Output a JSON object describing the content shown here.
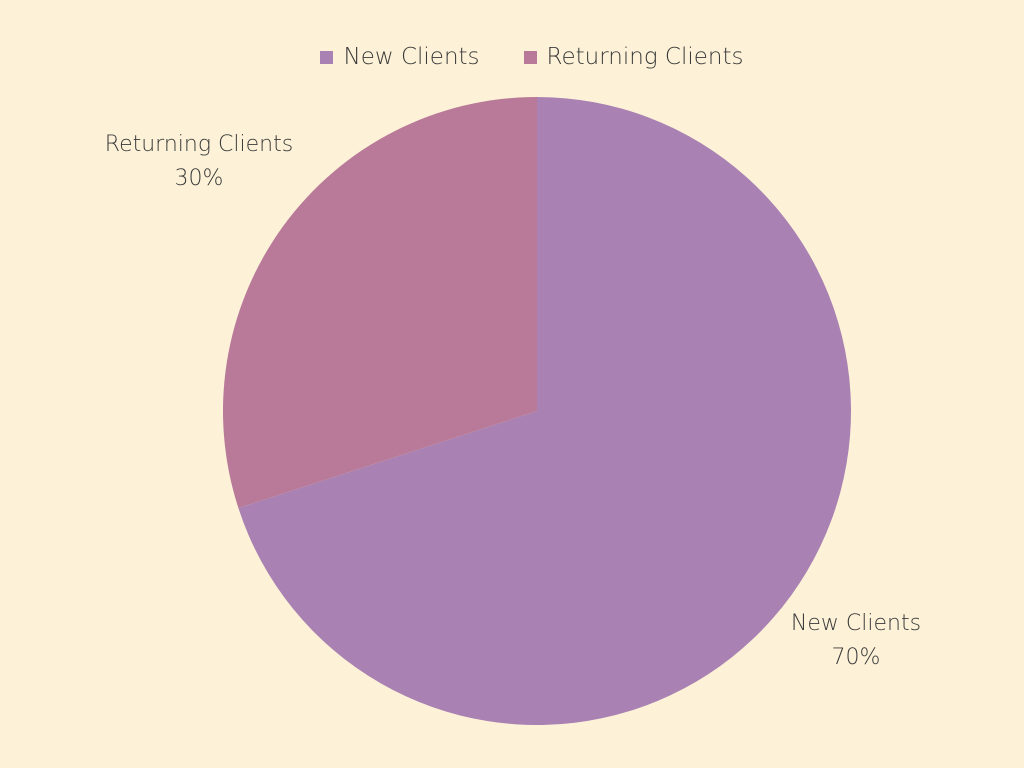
{
  "chart_data": {
    "type": "pie",
    "title": "",
    "categories": [
      "New Clients",
      "Returning Clients"
    ],
    "values": [
      70,
      30
    ],
    "value_labels": [
      "70%",
      "30%"
    ],
    "colors": [
      "#a981b2",
      "#b87a98"
    ],
    "legend_position": "top-center",
    "background": "#fdf2d8"
  }
}
